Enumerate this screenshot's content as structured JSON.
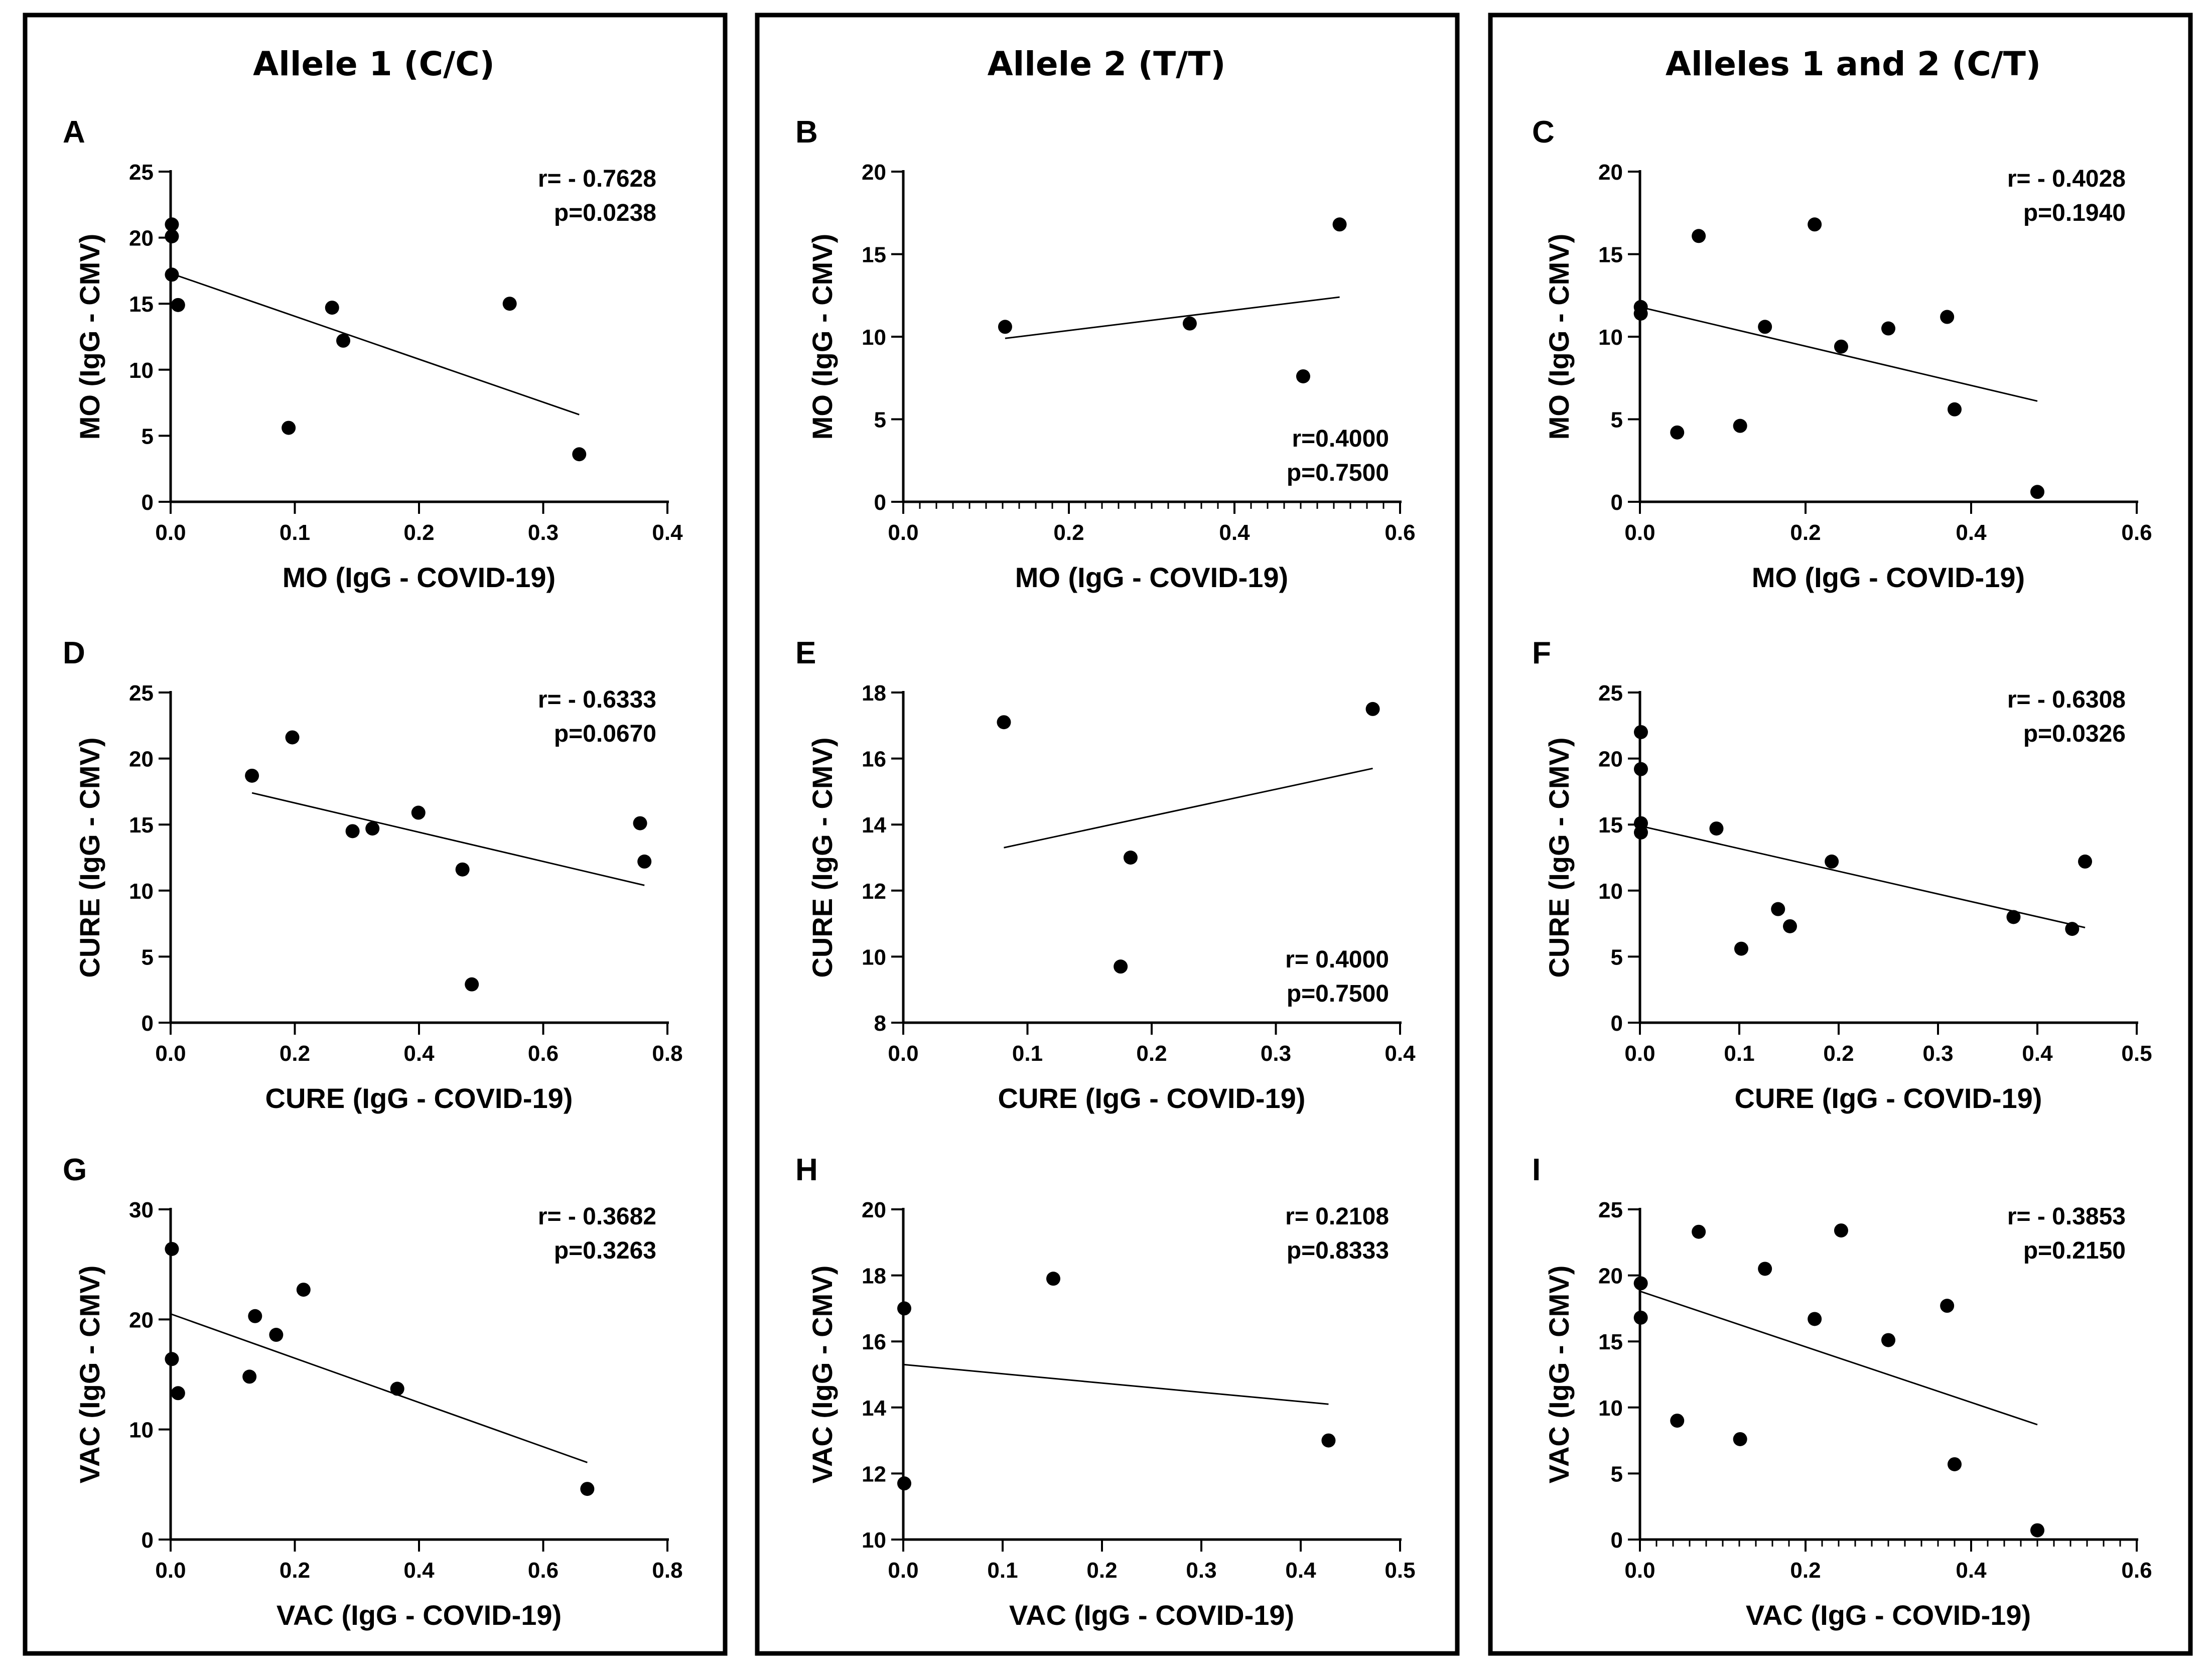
{
  "columns": [
    {
      "title": "Allele 1 (C/C)"
    },
    {
      "title": "Allele 2 (T/T)"
    },
    {
      "title": "Alleles 1 and 2 (C/T)"
    }
  ],
  "chart_data": [
    {
      "id": "A",
      "type": "scatter",
      "letter": "A",
      "xlabel": "MO (IgG - COVID-19)",
      "ylabel": "MO (IgG - CMV)",
      "xlim": [
        0,
        0.4
      ],
      "ylim": [
        0,
        25
      ],
      "xticks": [
        0,
        0.1,
        0.2,
        0.3,
        0.4
      ],
      "yticks": [
        0,
        5,
        10,
        15,
        20,
        25
      ],
      "xtick_labels": [
        "0.0",
        "0.1",
        "0.2",
        "0.3",
        "0.4"
      ],
      "ytick_labels": [
        "0",
        "5",
        "10",
        "15",
        "20",
        "25"
      ],
      "x_minor": 0,
      "stat_pos": "top-right",
      "r": "r= - 0.7628",
      "p": "p=0.0238",
      "points": [
        [
          0.001,
          21.0
        ],
        [
          0.001,
          20.1
        ],
        [
          0.001,
          17.2
        ],
        [
          0.006,
          14.9
        ],
        [
          0.095,
          5.6
        ],
        [
          0.13,
          14.7
        ],
        [
          0.139,
          12.2
        ],
        [
          0.273,
          15.0
        ],
        [
          0.329,
          3.6
        ]
      ],
      "trend": [
        [
          0.0,
          17.3
        ],
        [
          0.329,
          6.6
        ]
      ]
    },
    {
      "id": "B",
      "type": "scatter",
      "letter": "B",
      "xlabel": "MO (IgG - COVID-19)",
      "ylabel": "MO (IgG - CMV)",
      "xlim": [
        0,
        0.6
      ],
      "ylim": [
        0,
        20
      ],
      "xticks": [
        0,
        0.2,
        0.4,
        0.6
      ],
      "yticks": [
        0,
        5,
        10,
        15,
        20
      ],
      "xtick_labels": [
        "0.0",
        "0.2",
        "0.4",
        "0.6"
      ],
      "ytick_labels": [
        "0",
        "5",
        "10",
        "15",
        "20"
      ],
      "x_minor": 0.02,
      "stat_pos": "bottom-right",
      "r": "r=0.4000",
      "p": "p=0.7500",
      "points": [
        [
          0.123,
          10.6
        ],
        [
          0.346,
          10.8
        ],
        [
          0.483,
          7.6
        ],
        [
          0.527,
          16.8
        ]
      ],
      "trend": [
        [
          0.123,
          9.9
        ],
        [
          0.527,
          12.4
        ]
      ]
    },
    {
      "id": "C",
      "type": "scatter",
      "letter": "C",
      "xlabel": "MO (IgG - COVID-19)",
      "ylabel": "MO (IgG - CMV)",
      "xlim": [
        0,
        0.6
      ],
      "ylim": [
        0,
        20
      ],
      "xticks": [
        0,
        0.2,
        0.4,
        0.6
      ],
      "yticks": [
        0,
        5,
        10,
        15,
        20
      ],
      "xtick_labels": [
        "0.0",
        "0.2",
        "0.4",
        "0.6"
      ],
      "ytick_labels": [
        "0",
        "5",
        "10",
        "15",
        "20"
      ],
      "x_minor": 0,
      "stat_pos": "top-right",
      "r": "r= - 0.4028",
      "p": "p=0.1940",
      "points": [
        [
          0.001,
          11.8
        ],
        [
          0.001,
          11.4
        ],
        [
          0.045,
          4.2
        ],
        [
          0.071,
          16.1
        ],
        [
          0.121,
          4.6
        ],
        [
          0.151,
          10.6
        ],
        [
          0.211,
          16.8
        ],
        [
          0.243,
          9.4
        ],
        [
          0.3,
          10.5
        ],
        [
          0.371,
          11.2
        ],
        [
          0.38,
          5.6
        ],
        [
          0.48,
          0.6
        ]
      ],
      "trend": [
        [
          0.0,
          11.8
        ],
        [
          0.48,
          6.1
        ]
      ]
    },
    {
      "id": "D",
      "type": "scatter",
      "letter": "D",
      "xlabel": "CURE (IgG - COVID-19)",
      "ylabel": "CURE (IgG - CMV)",
      "xlim": [
        0,
        0.8
      ],
      "ylim": [
        0,
        25
      ],
      "xticks": [
        0,
        0.2,
        0.4,
        0.6,
        0.8
      ],
      "yticks": [
        0,
        5,
        10,
        15,
        20,
        25
      ],
      "xtick_labels": [
        "0.0",
        "0.2",
        "0.4",
        "0.6",
        "0.8"
      ],
      "ytick_labels": [
        "0",
        "5",
        "10",
        "15",
        "20",
        "25"
      ],
      "x_minor": 0,
      "stat_pos": "top-right",
      "r": "r= - 0.6333",
      "p": "p=0.0670",
      "points": [
        [
          0.131,
          18.7
        ],
        [
          0.196,
          21.6
        ],
        [
          0.293,
          14.5
        ],
        [
          0.325,
          14.7
        ],
        [
          0.399,
          15.9
        ],
        [
          0.47,
          11.6
        ],
        [
          0.485,
          2.9
        ],
        [
          0.756,
          15.1
        ],
        [
          0.763,
          12.2
        ]
      ],
      "trend": [
        [
          0.131,
          17.4
        ],
        [
          0.763,
          10.4
        ]
      ]
    },
    {
      "id": "E",
      "type": "scatter",
      "letter": "E",
      "xlabel": "CURE (IgG - COVID-19)",
      "ylabel": "CURE (IgG - CMV)",
      "xlim": [
        0,
        0.4
      ],
      "ylim": [
        8,
        18
      ],
      "xticks": [
        0,
        0.1,
        0.2,
        0.3,
        0.4
      ],
      "yticks": [
        8,
        10,
        12,
        14,
        16,
        18
      ],
      "xtick_labels": [
        "0.0",
        "0.1",
        "0.2",
        "0.3",
        "0.4"
      ],
      "ytick_labels": [
        "8",
        "10",
        "12",
        "14",
        "16",
        "18"
      ],
      "x_minor": 0,
      "stat_pos": "bottom-right",
      "r": "r= 0.4000",
      "p": "p=0.7500",
      "points": [
        [
          0.081,
          17.1
        ],
        [
          0.175,
          9.7
        ],
        [
          0.183,
          13.0
        ],
        [
          0.378,
          17.5
        ]
      ],
      "trend": [
        [
          0.081,
          13.3
        ],
        [
          0.378,
          15.7
        ]
      ]
    },
    {
      "id": "F",
      "type": "scatter",
      "letter": "F",
      "xlabel": "CURE (IgG - COVID-19)",
      "ylabel": "CURE (IgG - CMV)",
      "xlim": [
        0,
        0.5
      ],
      "ylim": [
        0,
        25
      ],
      "xticks": [
        0,
        0.1,
        0.2,
        0.3,
        0.4,
        0.5
      ],
      "yticks": [
        0,
        5,
        10,
        15,
        20,
        25
      ],
      "xtick_labels": [
        "0.0",
        "0.1",
        "0.2",
        "0.3",
        "0.4",
        "0.5"
      ],
      "ytick_labels": [
        "0",
        "5",
        "10",
        "15",
        "20",
        "25"
      ],
      "x_minor": 0,
      "stat_pos": "top-right",
      "r": "r= - 0.6308",
      "p": "p=0.0326",
      "points": [
        [
          0.001,
          22.0
        ],
        [
          0.001,
          19.2
        ],
        [
          0.001,
          15.1
        ],
        [
          0.001,
          14.4
        ],
        [
          0.077,
          14.7
        ],
        [
          0.102,
          5.6
        ],
        [
          0.139,
          8.6
        ],
        [
          0.151,
          7.3
        ],
        [
          0.193,
          12.2
        ],
        [
          0.376,
          8.0
        ],
        [
          0.435,
          7.1
        ],
        [
          0.448,
          12.2
        ]
      ],
      "trend": [
        [
          0.0,
          14.9
        ],
        [
          0.448,
          7.2
        ]
      ]
    },
    {
      "id": "G",
      "type": "scatter",
      "letter": "G",
      "xlabel": "VAC (IgG - COVID-19)",
      "ylabel": "VAC (IgG - CMV)",
      "xlim": [
        0,
        0.8
      ],
      "ylim": [
        0,
        30
      ],
      "xticks": [
        0,
        0.2,
        0.4,
        0.6,
        0.8
      ],
      "yticks": [
        0,
        10,
        20,
        30
      ],
      "xtick_labels": [
        "0.0",
        "0.2",
        "0.4",
        "0.6",
        "0.8"
      ],
      "ytick_labels": [
        "0",
        "10",
        "20",
        "30"
      ],
      "x_minor": 0,
      "stat_pos": "top-right",
      "r": "r= - 0.3682",
      "p": "p=0.3263",
      "points": [
        [
          0.002,
          26.4
        ],
        [
          0.002,
          16.4
        ],
        [
          0.012,
          13.3
        ],
        [
          0.127,
          14.8
        ],
        [
          0.136,
          20.3
        ],
        [
          0.17,
          18.6
        ],
        [
          0.214,
          22.7
        ],
        [
          0.365,
          13.7
        ],
        [
          0.671,
          4.6
        ]
      ],
      "trend": [
        [
          0.0,
          20.5
        ],
        [
          0.671,
          7.0
        ]
      ]
    },
    {
      "id": "H",
      "type": "scatter",
      "letter": "H",
      "xlabel": "VAC (IgG - COVID-19)",
      "ylabel": "VAC (IgG - CMV)",
      "xlim": [
        0,
        0.5
      ],
      "ylim": [
        10,
        20
      ],
      "xticks": [
        0,
        0.1,
        0.2,
        0.3,
        0.4,
        0.5
      ],
      "yticks": [
        10,
        12,
        14,
        16,
        18,
        20
      ],
      "xtick_labels": [
        "0.0",
        "0.1",
        "0.2",
        "0.3",
        "0.4",
        "0.5"
      ],
      "ytick_labels": [
        "10",
        "12",
        "14",
        "16",
        "18",
        "20"
      ],
      "x_minor": 0,
      "stat_pos": "top-right",
      "r": "r= 0.2108",
      "p": "p=0.8333",
      "points": [
        [
          0.001,
          17.0
        ],
        [
          0.001,
          11.7
        ],
        [
          0.151,
          17.9
        ],
        [
          0.428,
          13.0
        ]
      ],
      "trend": [
        [
          0.0,
          15.3
        ],
        [
          0.428,
          14.1
        ]
      ]
    },
    {
      "id": "I",
      "type": "scatter",
      "letter": "I",
      "xlabel": "VAC (IgG - COVID-19)",
      "ylabel": "VAC (IgG - CMV)",
      "xlim": [
        0,
        0.6
      ],
      "ylim": [
        0,
        25
      ],
      "xticks": [
        0,
        0.2,
        0.4,
        0.6
      ],
      "yticks": [
        0,
        5,
        10,
        15,
        20,
        25
      ],
      "xtick_labels": [
        "0.0",
        "0.2",
        "0.4",
        "0.6"
      ],
      "ytick_labels": [
        "0",
        "5",
        "10",
        "15",
        "20",
        "25"
      ],
      "x_minor": 0.02,
      "stat_pos": "top-right",
      "r": "r= - 0.3853",
      "p": "p=0.2150",
      "points": [
        [
          0.001,
          19.4
        ],
        [
          0.001,
          16.8
        ],
        [
          0.045,
          9.0
        ],
        [
          0.071,
          23.3
        ],
        [
          0.121,
          7.6
        ],
        [
          0.151,
          20.5
        ],
        [
          0.211,
          16.7
        ],
        [
          0.243,
          23.4
        ],
        [
          0.3,
          15.1
        ],
        [
          0.371,
          17.7
        ],
        [
          0.38,
          5.7
        ],
        [
          0.48,
          0.7
        ]
      ],
      "trend": [
        [
          0.0,
          18.8
        ],
        [
          0.48,
          8.7
        ]
      ]
    }
  ]
}
